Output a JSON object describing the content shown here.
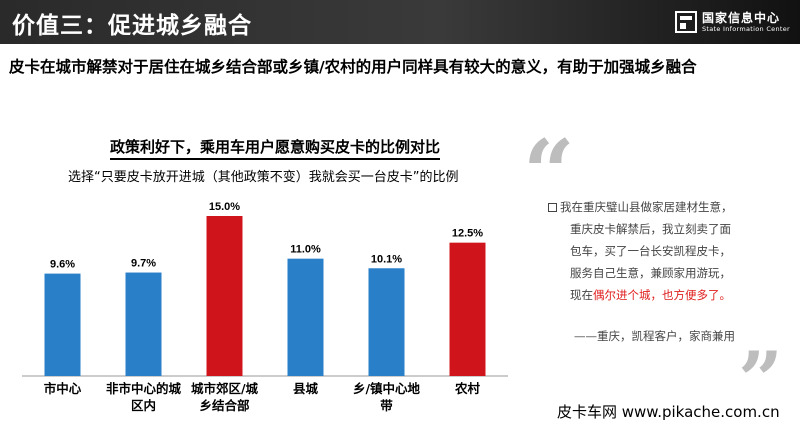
{
  "header": {
    "title": "价值三：促进城乡融合",
    "logo_cn": "国家信息中心",
    "logo_en": "State Information Center"
  },
  "subtitle": "皮卡在城市解禁对于居住在城乡结合部或乡镇/农村的用户同样具有较大的意义，有助于加强城乡融合",
  "chart_data": {
    "type": "bar",
    "title": "政策利好下，乘用车用户愿意购买皮卡的比例对比",
    "subtitle": "选择“只要皮卡放开进城（其他政策不变）我就会买一台皮卡”的比例",
    "categories": [
      "市中心",
      "非市中心的城区内",
      "城市郊区/城乡结合部",
      "县城",
      "乡/镇中心地带",
      "农村"
    ],
    "category_lines": [
      [
        "市中心"
      ],
      [
        "非市中心的城",
        "区内"
      ],
      [
        "城市郊区/城",
        "乡结合部"
      ],
      [
        "县城"
      ],
      [
        "乡/镇中心地",
        "带"
      ],
      [
        "农村"
      ]
    ],
    "values": [
      9.6,
      9.7,
      15.0,
      11.0,
      10.1,
      12.5
    ],
    "value_labels": [
      "9.6%",
      "9.7%",
      "15.0%",
      "11.0%",
      "10.1%",
      "12.5%"
    ],
    "colors": [
      "#2a7fc9",
      "#2a7fc9",
      "#d0141c",
      "#2a7fc9",
      "#2a7fc9",
      "#d0141c"
    ],
    "ylim": [
      0,
      15
    ],
    "grid": false
  },
  "quote": {
    "line1": "我在重庆璧山县做家居建材生意，",
    "line2": "重庆皮卡解禁后，我立刻卖了面",
    "line3": "包车，买了一台长安凯程皮卡，",
    "line4": "服务自己生意，兼顾家用游玩，",
    "line5_pre": "现在",
    "line5_red": "偶尔进个城，也方便多了。",
    "author": "——重庆，凯程客户，家商兼用"
  },
  "watermark": "皮卡车网  www.pikache.com.cn",
  "colors": {
    "header_bg": "#2e2e2e",
    "bar_blue": "#2a7fc9",
    "bar_red": "#d0141c",
    "quote_mark": "#bdbdbd",
    "highlight": "#e02020"
  }
}
